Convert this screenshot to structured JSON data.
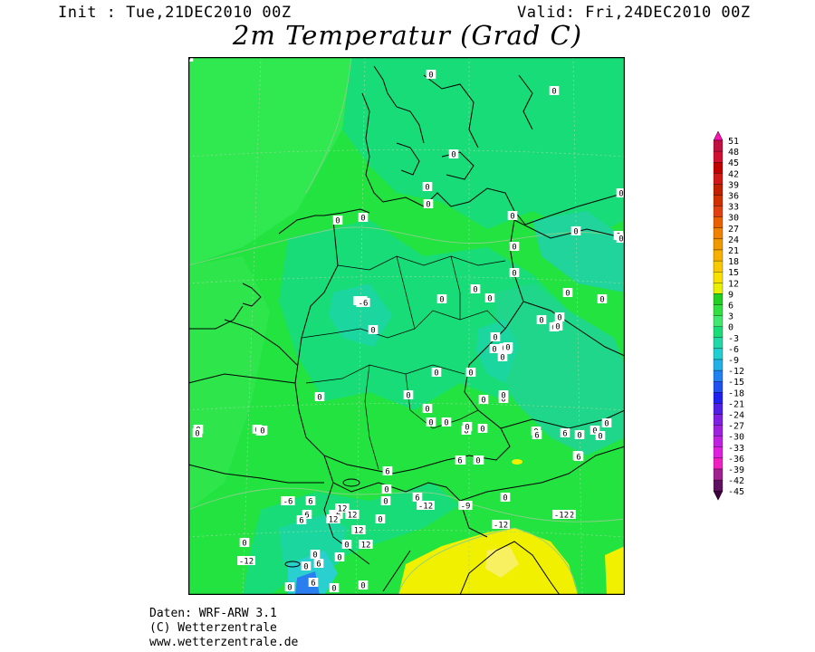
{
  "header": {
    "init": "Init : Tue,21DEC2010 00Z",
    "valid": "Valid: Fri,24DEC2010 00Z",
    "title": "2m Temperatur (Grad C)"
  },
  "colors": {
    "base_green": "#22e340",
    "light_green": "#30e850",
    "cool_green": "#18dc78",
    "mint": "#1cd6a0",
    "cyan": "#2ad0d0",
    "blue": "#2a7ef0",
    "yellow": "#f0f000",
    "yellow_pale": "#f8f060"
  },
  "map": {
    "value_labels": [
      "0",
      "0",
      "0",
      "0",
      "0",
      "0",
      "0",
      "0",
      "0",
      "0",
      "0",
      "-6",
      "0",
      "0",
      "0",
      "0",
      "0",
      "0",
      "0",
      "0",
      "0",
      "0",
      "0",
      "0",
      "0",
      "0",
      "0",
      "0",
      "0",
      "0",
      "0",
      "0",
      "0",
      "0",
      "0",
      "0",
      "0",
      "0",
      "0",
      "0",
      "0",
      "0",
      "0",
      "0",
      "0",
      "0",
      "0",
      "0",
      "0",
      "0",
      "0",
      "0",
      "-6",
      "0",
      "0",
      "0",
      "-6",
      "6",
      "6",
      "6",
      "6",
      "6",
      "6",
      "6",
      "6",
      "0",
      "0",
      "0",
      "6",
      "0",
      "-6",
      "6",
      "-6",
      "0",
      "-12",
      "-9",
      "-12",
      "-12",
      "-12",
      "6",
      "6",
      "12",
      "12",
      "12",
      "12",
      "12",
      "0",
      "6",
      "6",
      "0",
      "0",
      "0",
      "0",
      "0",
      "0",
      "0",
      "-12",
      "0"
    ]
  },
  "legend": {
    "labels": [
      "51",
      "48",
      "45",
      "42",
      "39",
      "36",
      "33",
      "30",
      "27",
      "24",
      "21",
      "18",
      "15",
      "12",
      "9",
      "6",
      "3",
      "0",
      "-3",
      "-6",
      "-9",
      "-12",
      "-15",
      "-18",
      "-21",
      "-24",
      "-27",
      "-30",
      "-33",
      "-36",
      "-39",
      "-42",
      "-45"
    ],
    "colors": [
      "#ff10b0",
      "#c01040",
      "#d01030",
      "#c00000",
      "#d01818",
      "#c02000",
      "#d03000",
      "#e04010",
      "#e86000",
      "#f08000",
      "#f09800",
      "#f8b000",
      "#f8c800",
      "#f8e000",
      "#e8f000",
      "#20d020",
      "#30e040",
      "#40e870",
      "#18dc78",
      "#20d8a8",
      "#20d0d0",
      "#20b0e8",
      "#2080f0",
      "#2050f0",
      "#2020f0",
      "#5020e8",
      "#8020e0",
      "#a020e0",
      "#c020e0",
      "#e020e0",
      "#f020c0",
      "#a02090",
      "#601060",
      "#400040"
    ]
  },
  "footer": {
    "line1": "Daten: WRF-ARW 3.1",
    "line2": "(C) Wetterzentrale",
    "line3": "www.wetterzentrale.de"
  }
}
